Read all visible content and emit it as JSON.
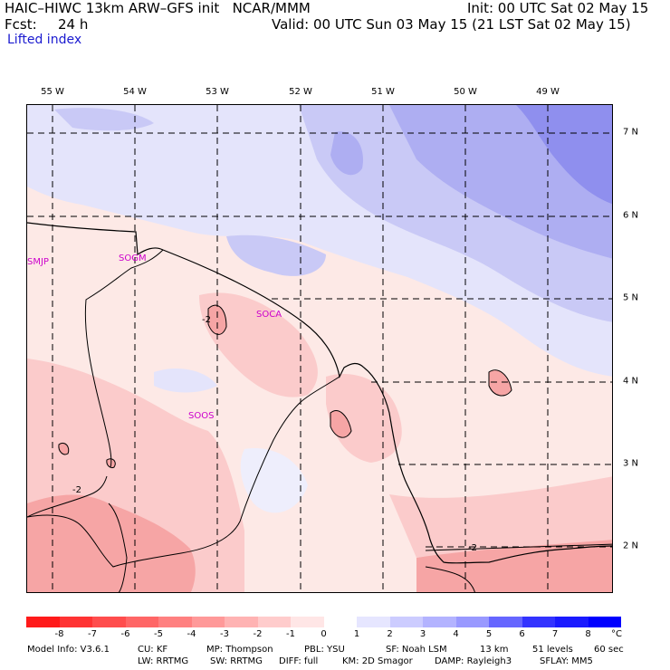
{
  "header": {
    "model": "HAIC–HIWC 13km ARW–GFS init   NCAR/MMM",
    "init": "Init: 00 UTC Sat 02 May 15",
    "fcst_label": "Fcst:",
    "fcst_value": "24 h",
    "valid": "Valid: 00 UTC Sun 03 May 15 (21 LST Sat 02 May 15)",
    "field": "Lifted index"
  },
  "map": {
    "lon_labels": [
      "55 W",
      "54 W",
      "53 W",
      "52 W",
      "51 W",
      "50 W",
      "49 W"
    ],
    "lat_labels": [
      "7 N",
      "6 N",
      "5 N",
      "4 N",
      "3 N",
      "2 N"
    ],
    "stations": [
      "SMJP",
      "SOGM",
      "SOCA",
      "SOOS"
    ],
    "contour_labels": [
      "-2",
      "-2",
      "-2"
    ]
  },
  "colorbar": {
    "ticks": [
      "-8",
      "-7",
      "-6",
      "-5",
      "-4",
      "-3",
      "-2",
      "-1",
      "0",
      "1",
      "2",
      "3",
      "4",
      "5",
      "6",
      "7",
      "8"
    ],
    "unit": "°C",
    "colors": [
      "#ff1a1a",
      "#ff3333",
      "#ff4d4d",
      "#ff6666",
      "#ff8080",
      "#ff9999",
      "#ffb3b3",
      "#ffcccc",
      "#ffe6e6",
      "#ffffff",
      "#e6e6ff",
      "#ccccff",
      "#b3b3ff",
      "#9999ff",
      "#6666ff",
      "#3333ff",
      "#1a1aff",
      "#0000ff"
    ]
  },
  "footer": {
    "line1": [
      "Model Info: V3.6.1",
      "CU: KF",
      "MP: Thompson",
      "PBL: YSU",
      "SF: Noah LSM",
      "13 km",
      "51 levels",
      "60 sec"
    ],
    "line2": [
      "LW: RRTMG",
      "SW: RRTMG",
      "DIFF: full",
      "KM: 2D Smagor",
      "DAMP: Rayleigh3",
      "SFLAY: MM5"
    ]
  }
}
